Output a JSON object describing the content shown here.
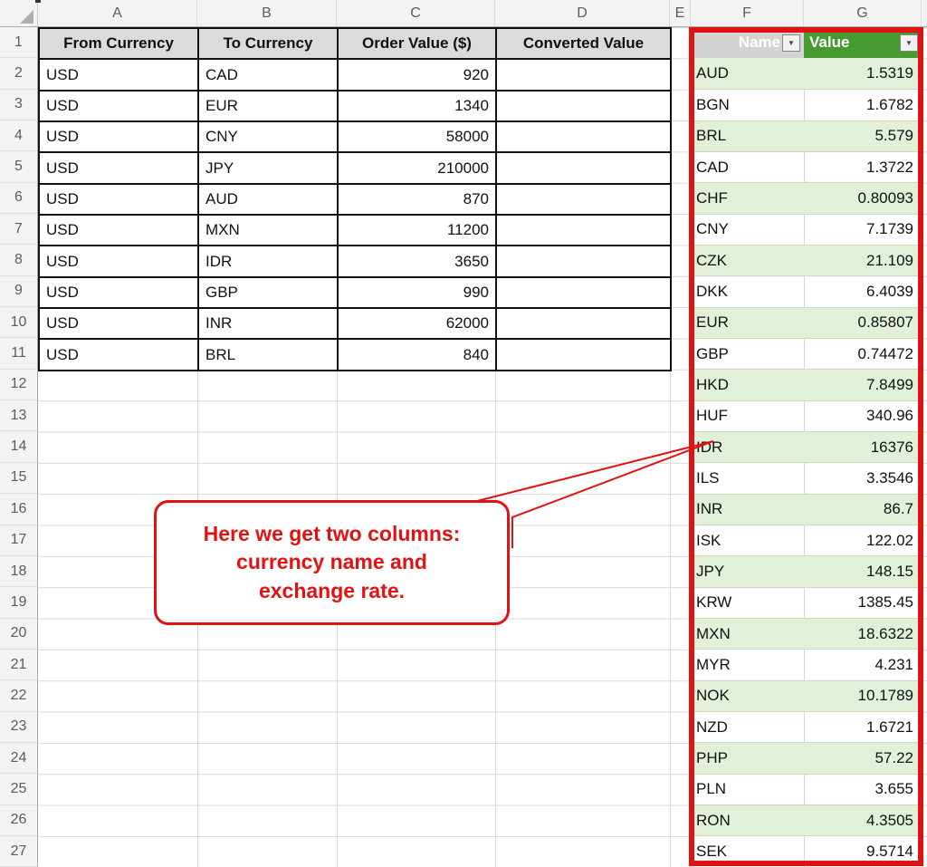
{
  "sheet": {
    "column_letters": [
      "A",
      "B",
      "C",
      "D",
      "E",
      "F",
      "G"
    ],
    "row_numbers": [
      1,
      2,
      3,
      4,
      5,
      6,
      7,
      8,
      9,
      10,
      11,
      12,
      13,
      14,
      15,
      16,
      17,
      18,
      19,
      20,
      21,
      22,
      23,
      24,
      25,
      26,
      27
    ]
  },
  "orders_table": {
    "headers": [
      "From Currency",
      "To Currency",
      "Order Value ($)",
      "Converted Value"
    ],
    "rows": [
      {
        "from": "USD",
        "to": "CAD",
        "order_value": "920",
        "converted_value": ""
      },
      {
        "from": "USD",
        "to": "EUR",
        "order_value": "1340",
        "converted_value": ""
      },
      {
        "from": "USD",
        "to": "CNY",
        "order_value": "58000",
        "converted_value": ""
      },
      {
        "from": "USD",
        "to": "JPY",
        "order_value": "210000",
        "converted_value": ""
      },
      {
        "from": "USD",
        "to": "AUD",
        "order_value": "870",
        "converted_value": ""
      },
      {
        "from": "USD",
        "to": "MXN",
        "order_value": "11200",
        "converted_value": ""
      },
      {
        "from": "USD",
        "to": "IDR",
        "order_value": "3650",
        "converted_value": ""
      },
      {
        "from": "USD",
        "to": "GBP",
        "order_value": "990",
        "converted_value": ""
      },
      {
        "from": "USD",
        "to": "INR",
        "order_value": "62000",
        "converted_value": ""
      },
      {
        "from": "USD",
        "to": "BRL",
        "order_value": "840",
        "converted_value": ""
      }
    ]
  },
  "rates_table": {
    "name_header": "Name",
    "value_header": "Value",
    "filter_icon": "▼",
    "rows": [
      {
        "name": "AUD",
        "value": "1.5319"
      },
      {
        "name": "BGN",
        "value": "1.6782"
      },
      {
        "name": "BRL",
        "value": "5.579"
      },
      {
        "name": "CAD",
        "value": "1.3722"
      },
      {
        "name": "CHF",
        "value": "0.80093"
      },
      {
        "name": "CNY",
        "value": "7.1739"
      },
      {
        "name": "CZK",
        "value": "21.109"
      },
      {
        "name": "DKK",
        "value": "6.4039"
      },
      {
        "name": "EUR",
        "value": "0.85807"
      },
      {
        "name": "GBP",
        "value": "0.74472"
      },
      {
        "name": "HKD",
        "value": "7.8499"
      },
      {
        "name": "HUF",
        "value": "340.96"
      },
      {
        "name": "IDR",
        "value": "16376"
      },
      {
        "name": "ILS",
        "value": "3.3546"
      },
      {
        "name": "INR",
        "value": "86.7"
      },
      {
        "name": "ISK",
        "value": "122.02"
      },
      {
        "name": "JPY",
        "value": "148.15"
      },
      {
        "name": "KRW",
        "value": "1385.45"
      },
      {
        "name": "MXN",
        "value": "18.6322"
      },
      {
        "name": "MYR",
        "value": "4.231"
      },
      {
        "name": "NOK",
        "value": "10.1789"
      },
      {
        "name": "NZD",
        "value": "1.6721"
      },
      {
        "name": "PHP",
        "value": "57.22"
      },
      {
        "name": "PLN",
        "value": "3.655"
      },
      {
        "name": "RON",
        "value": "4.3505"
      },
      {
        "name": "SEK",
        "value": "9.5714"
      }
    ]
  },
  "callout": {
    "text": "Here we get two columns:\ncurrency name and\nexchange rate."
  },
  "colors": {
    "green_header": "#479A30",
    "green_band": "#E2F0D9",
    "red": "#E31212",
    "grey_name_header": "#D4D4D4",
    "grey_table_header": "#DBDBDB"
  }
}
